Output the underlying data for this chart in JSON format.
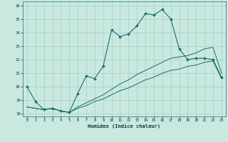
{
  "title": "",
  "xlabel": "Humidex (Indice chaleur)",
  "xlim": [
    -0.5,
    23.5
  ],
  "ylim": [
    17.8,
    26.3
  ],
  "xticks": [
    0,
    1,
    2,
    3,
    4,
    5,
    6,
    7,
    8,
    9,
    10,
    11,
    12,
    13,
    14,
    15,
    16,
    17,
    18,
    19,
    20,
    21,
    22,
    23
  ],
  "yticks": [
    18,
    19,
    20,
    21,
    22,
    23,
    24,
    25,
    26
  ],
  "background_color": "#c8e8e0",
  "grid_color": "#a0c8c0",
  "line_color": "#1a7068",
  "line1_x": [
    0,
    1,
    2,
    3,
    4,
    5,
    6,
    7,
    8,
    9,
    10,
    11,
    12,
    13,
    14,
    15,
    16,
    17,
    18,
    19,
    20,
    21,
    22,
    23
  ],
  "line1_y": [
    20.0,
    18.9,
    18.3,
    18.4,
    18.2,
    18.1,
    19.5,
    20.8,
    20.6,
    21.5,
    24.2,
    23.7,
    23.9,
    24.5,
    25.4,
    25.3,
    25.7,
    25.0,
    22.8,
    22.0,
    22.1,
    22.1,
    22.0,
    20.7
  ],
  "line2_x": [
    0,
    1,
    2,
    3,
    4,
    5,
    6,
    7,
    8,
    9,
    10,
    11,
    12,
    13,
    14,
    15,
    16,
    17,
    18,
    19,
    20,
    21,
    22,
    23
  ],
  "line2_y": [
    18.5,
    18.4,
    18.3,
    18.4,
    18.2,
    18.1,
    18.5,
    18.8,
    19.1,
    19.4,
    19.8,
    20.2,
    20.5,
    20.9,
    21.2,
    21.5,
    21.8,
    22.1,
    22.2,
    22.3,
    22.5,
    22.8,
    22.9,
    21.0
  ],
  "line3_x": [
    0,
    1,
    2,
    3,
    4,
    5,
    6,
    7,
    8,
    9,
    10,
    11,
    12,
    13,
    14,
    15,
    16,
    17,
    18,
    19,
    20,
    21,
    22,
    23
  ],
  "line3_y": [
    18.5,
    18.4,
    18.3,
    18.4,
    18.2,
    18.1,
    18.4,
    18.6,
    18.9,
    19.1,
    19.4,
    19.7,
    19.9,
    20.2,
    20.5,
    20.7,
    21.0,
    21.2,
    21.3,
    21.5,
    21.6,
    21.8,
    21.9,
    20.6
  ],
  "figsize": [
    3.2,
    2.0
  ],
  "dpi": 100
}
